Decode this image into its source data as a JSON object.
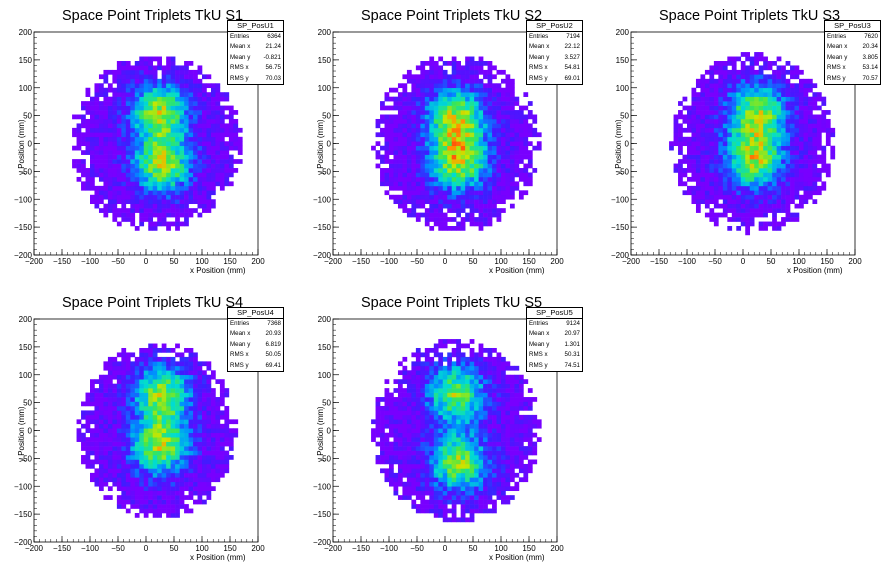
{
  "chart_data": [
    {
      "type": "heatmap",
      "title": "Space Point Triplets TkU S1",
      "xlabel": "x Position (mm)",
      "ylabel": "y Position (mm)",
      "xlim": [
        -200,
        200
      ],
      "ylim": [
        -200,
        200
      ],
      "x_ticks": [
        "−200",
        "−150",
        "−100",
        "−50",
        "0",
        "50",
        "100",
        "150",
        "200"
      ],
      "y_ticks": [
        "200",
        "150",
        "100",
        "50",
        "0",
        "−50",
        "−100",
        "−150",
        "−200"
      ],
      "stats": {
        "name": "SP_PosU1",
        "entries": "6364",
        "mean_x": "21.24",
        "mean_y": "-0.821",
        "rms_x": "56.75",
        "rms_y": "70.03"
      },
      "colors": {
        "low": "#7a00ff",
        "mid": "#00e0c8",
        "high": "#ff1010"
      }
    },
    {
      "type": "heatmap",
      "title": "Space Point Triplets TkU S2",
      "xlabel": "x Position (mm)",
      "ylabel": "y Position (mm)",
      "xlim": [
        -200,
        200
      ],
      "ylim": [
        -200,
        200
      ],
      "x_ticks": [
        "−200",
        "−150",
        "−100",
        "−50",
        "0",
        "50",
        "100",
        "150",
        "200"
      ],
      "y_ticks": [
        "200",
        "150",
        "100",
        "50",
        "0",
        "−50",
        "−100",
        "−150",
        "−200"
      ],
      "stats": {
        "name": "SP_PosU2",
        "entries": "7194",
        "mean_x": "22.12",
        "mean_y": "3.527",
        "rms_x": "54.81",
        "rms_y": "69.01"
      },
      "colors": {
        "low": "#7a00ff",
        "mid": "#00e0c8",
        "high": "#ff1010"
      }
    },
    {
      "type": "heatmap",
      "title": "Space Point Triplets TkU S3",
      "xlabel": "x Position (mm)",
      "ylabel": "y Position (mm)",
      "xlim": [
        -200,
        200
      ],
      "ylim": [
        -200,
        200
      ],
      "x_ticks": [
        "−200",
        "−150",
        "−100",
        "−50",
        "0",
        "50",
        "100",
        "150",
        "200"
      ],
      "y_ticks": [
        "200",
        "150",
        "100",
        "50",
        "0",
        "−50",
        "−100",
        "−150",
        "−200"
      ],
      "stats": {
        "name": "SP_PosU3",
        "entries": "7620",
        "mean_x": "20.34",
        "mean_y": "3.805",
        "rms_x": "53.14",
        "rms_y": "70.57"
      },
      "colors": {
        "low": "#7a00ff",
        "mid": "#00e0c8",
        "high": "#ff1010"
      }
    },
    {
      "type": "heatmap",
      "title": "Space Point Triplets TkU S4",
      "xlabel": "x Position (mm)",
      "ylabel": "y Position (mm)",
      "xlim": [
        -200,
        200
      ],
      "ylim": [
        -200,
        200
      ],
      "x_ticks": [
        "−200",
        "−150",
        "−100",
        "−50",
        "0",
        "50",
        "100",
        "150",
        "200"
      ],
      "y_ticks": [
        "200",
        "150",
        "100",
        "50",
        "0",
        "−50",
        "−100",
        "−150",
        "−200"
      ],
      "stats": {
        "name": "SP_PosU4",
        "entries": "7368",
        "mean_x": "20.93",
        "mean_y": "6.819",
        "rms_x": "50.05",
        "rms_y": "69.41"
      },
      "colors": {
        "low": "#7a00ff",
        "mid": "#00e0c8",
        "high": "#ff1010"
      }
    },
    {
      "type": "heatmap",
      "title": "Space Point Triplets TkU S5",
      "xlabel": "x Position (mm)",
      "ylabel": "y Position (mm)",
      "xlim": [
        -200,
        200
      ],
      "ylim": [
        -200,
        200
      ],
      "x_ticks": [
        "−200",
        "−150",
        "−100",
        "−50",
        "0",
        "50",
        "100",
        "150",
        "200"
      ],
      "y_ticks": [
        "200",
        "150",
        "100",
        "50",
        "0",
        "−50",
        "−100",
        "−150",
        "−200"
      ],
      "stats": {
        "name": "SP_PosU5",
        "entries": "9124",
        "mean_x": "20.97",
        "mean_y": "1.301",
        "rms_x": "50.31",
        "rms_y": "74.51"
      },
      "colors": {
        "low": "#7a00ff",
        "mid": "#00e0c8",
        "high": "#ff1010"
      }
    }
  ],
  "stat_labels": {
    "entries": "Entries",
    "mean_x": "Mean x",
    "mean_y": "Mean y",
    "rms_x": "RMS x",
    "rms_y": "RMS y"
  }
}
